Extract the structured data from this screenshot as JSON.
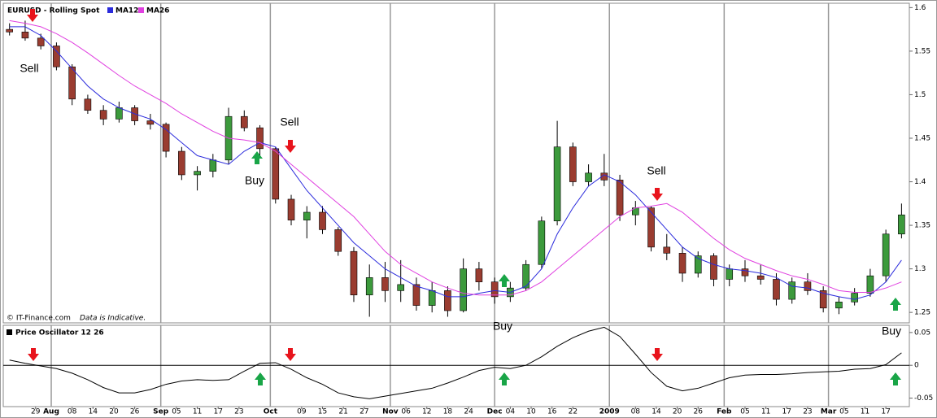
{
  "chart_data": [
    {
      "type": "candlestick",
      "title": "EURUSD - Rolling Spot",
      "x": [
        0,
        3,
        6,
        9,
        12,
        15,
        18,
        21,
        24,
        27,
        30,
        33,
        36,
        39,
        42,
        45,
        48,
        51,
        54,
        57,
        60,
        63,
        66,
        69,
        72,
        75,
        78,
        81,
        84,
        87,
        90,
        93,
        96,
        99,
        102,
        105,
        108,
        111,
        114,
        117,
        120,
        123,
        126,
        129,
        132,
        135,
        138,
        141,
        144,
        147,
        150,
        153,
        156,
        159,
        162,
        165,
        168,
        171
      ],
      "open": [
        1.575,
        1.572,
        1.565,
        1.556,
        1.532,
        1.495,
        1.482,
        1.472,
        1.485,
        1.47,
        1.466,
        1.435,
        1.408,
        1.412,
        1.425,
        1.475,
        1.462,
        1.438,
        1.38,
        1.356,
        1.365,
        1.345,
        1.32,
        1.27,
        1.29,
        1.275,
        1.282,
        1.258,
        1.275,
        1.252,
        1.3,
        1.285,
        1.268,
        1.278,
        1.305,
        1.355,
        1.44,
        1.4,
        1.41,
        1.402,
        1.362,
        1.37,
        1.325,
        1.318,
        1.295,
        1.315,
        1.288,
        1.3,
        1.292,
        1.288,
        1.265,
        1.285,
        1.275,
        1.255,
        1.262,
        1.272,
        1.292,
        1.34
      ],
      "high": [
        1.582,
        1.585,
        1.57,
        1.56,
        1.535,
        1.5,
        1.488,
        1.492,
        1.488,
        1.478,
        1.468,
        1.44,
        1.418,
        1.432,
        1.485,
        1.482,
        1.465,
        1.44,
        1.385,
        1.372,
        1.372,
        1.348,
        1.325,
        1.305,
        1.308,
        1.31,
        1.29,
        1.285,
        1.28,
        1.312,
        1.308,
        1.29,
        1.285,
        1.31,
        1.36,
        1.47,
        1.445,
        1.42,
        1.432,
        1.408,
        1.378,
        1.372,
        1.34,
        1.325,
        1.32,
        1.318,
        1.305,
        1.31,
        1.305,
        1.295,
        1.29,
        1.295,
        1.28,
        1.268,
        1.278,
        1.3,
        1.345,
        1.375
      ],
      "low": [
        1.568,
        1.562,
        1.552,
        1.528,
        1.488,
        1.478,
        1.465,
        1.468,
        1.465,
        1.46,
        1.428,
        1.402,
        1.39,
        1.405,
        1.42,
        1.458,
        1.428,
        1.375,
        1.35,
        1.335,
        1.34,
        1.315,
        1.262,
        1.245,
        1.262,
        1.262,
        1.252,
        1.25,
        1.245,
        1.25,
        1.275,
        1.26,
        1.262,
        1.275,
        1.3,
        1.35,
        1.395,
        1.395,
        1.395,
        1.355,
        1.35,
        1.32,
        1.31,
        1.285,
        1.29,
        1.28,
        1.28,
        1.285,
        1.282,
        1.258,
        1.26,
        1.27,
        1.25,
        1.248,
        1.258,
        1.268,
        1.285,
        1.335
      ],
      "close": [
        1.572,
        1.565,
        1.556,
        1.532,
        1.495,
        1.482,
        1.472,
        1.485,
        1.47,
        1.466,
        1.435,
        1.408,
        1.412,
        1.425,
        1.475,
        1.462,
        1.438,
        1.38,
        1.356,
        1.365,
        1.345,
        1.32,
        1.27,
        1.29,
        1.275,
        1.282,
        1.258,
        1.275,
        1.252,
        1.3,
        1.285,
        1.268,
        1.278,
        1.305,
        1.355,
        1.44,
        1.4,
        1.41,
        1.402,
        1.362,
        1.37,
        1.325,
        1.318,
        1.295,
        1.315,
        1.288,
        1.3,
        1.292,
        1.288,
        1.265,
        1.285,
        1.275,
        1.255,
        1.262,
        1.272,
        1.292,
        1.34,
        1.362
      ],
      "up_color": "#3c9a3c",
      "down_color": "#9a3c30",
      "series": [
        {
          "name": "MA12",
          "color": "#2b2bdc",
          "values": [
            1.578,
            1.578,
            1.568,
            1.55,
            1.53,
            1.51,
            1.495,
            1.485,
            1.478,
            1.472,
            1.46,
            1.445,
            1.43,
            1.425,
            1.42,
            1.435,
            1.445,
            1.44,
            1.415,
            1.39,
            1.37,
            1.35,
            1.33,
            1.315,
            1.3,
            1.29,
            1.28,
            1.275,
            1.268,
            1.268,
            1.272,
            1.275,
            1.273,
            1.28,
            1.3,
            1.34,
            1.37,
            1.395,
            1.408,
            1.4,
            1.385,
            1.365,
            1.345,
            1.325,
            1.312,
            1.305,
            1.3,
            1.298,
            1.295,
            1.29,
            1.28,
            1.278,
            1.272,
            1.268,
            1.265,
            1.27,
            1.285,
            1.31
          ]
        },
        {
          "name": "MA26",
          "color": "#e040e0",
          "values": [
            1.585,
            1.582,
            1.578,
            1.57,
            1.56,
            1.548,
            1.535,
            1.522,
            1.51,
            1.5,
            1.49,
            1.478,
            1.468,
            1.458,
            1.45,
            1.448,
            1.445,
            1.435,
            1.42,
            1.405,
            1.39,
            1.375,
            1.36,
            1.34,
            1.32,
            1.305,
            1.295,
            1.285,
            1.278,
            1.272,
            1.27,
            1.27,
            1.27,
            1.275,
            1.285,
            1.3,
            1.315,
            1.33,
            1.345,
            1.36,
            1.37,
            1.372,
            1.375,
            1.365,
            1.35,
            1.335,
            1.322,
            1.312,
            1.305,
            1.298,
            1.292,
            1.288,
            1.282,
            1.275,
            1.273,
            1.273,
            1.278,
            1.285
          ]
        }
      ],
      "xlim": [
        -1.2,
        172.5
      ],
      "ylim": [
        1.238,
        1.605
      ],
      "yticks": [
        1.25,
        1.3,
        1.35,
        1.4,
        1.45,
        1.5,
        1.55,
        1.6
      ],
      "annotations": [
        "Sell",
        "Sell",
        "Buy",
        "Sell",
        "Buy",
        "Buy"
      ],
      "credit": "© IT-Finance.com",
      "note": "Data is Indicative."
    },
    {
      "type": "line",
      "title": "Price Oscillator 12 26",
      "color": "#000000",
      "values": [
        0.008,
        0.003,
        -0.001,
        -0.005,
        -0.012,
        -0.022,
        -0.034,
        -0.042,
        -0.042,
        -0.037,
        -0.029,
        -0.024,
        -0.022,
        -0.023,
        -0.022,
        -0.009,
        0.003,
        0.004,
        -0.006,
        -0.019,
        -0.029,
        -0.042,
        -0.048,
        -0.051,
        -0.047,
        -0.043,
        -0.039,
        -0.035,
        -0.027,
        -0.018,
        -0.008,
        -0.003,
        -0.005,
        0,
        0.013,
        0.029,
        0.042,
        0.052,
        0.058,
        0.044,
        0.017,
        -0.011,
        -0.032,
        -0.039,
        -0.035,
        -0.027,
        -0.019,
        -0.015,
        -0.014,
        -0.014,
        -0.013,
        -0.011,
        -0.01,
        -0.009,
        -0.006,
        -0.005,
        0.001,
        0.019
      ],
      "xlim": [
        -1.2,
        172.5
      ],
      "ylim": [
        -0.063,
        0.061
      ],
      "yticks": [
        -0.05,
        0,
        0.05
      ],
      "xticks": [
        {
          "value": 5,
          "label": "29"
        },
        {
          "value": 12,
          "label": "08"
        },
        {
          "value": 16,
          "label": "14"
        },
        {
          "value": 20,
          "label": "20"
        },
        {
          "value": 24,
          "label": "26"
        },
        {
          "value": 32,
          "label": "05"
        },
        {
          "value": 36,
          "label": "11"
        },
        {
          "value": 40,
          "label": "17"
        },
        {
          "value": 44,
          "label": "23"
        },
        {
          "value": 56,
          "label": "09"
        },
        {
          "value": 60,
          "label": "15"
        },
        {
          "value": 64,
          "label": "21"
        },
        {
          "value": 68,
          "label": "27"
        },
        {
          "value": 76,
          "label": "06"
        },
        {
          "value": 80,
          "label": "12"
        },
        {
          "value": 84,
          "label": "18"
        },
        {
          "value": 88,
          "label": "24"
        },
        {
          "value": 96,
          "label": "04"
        },
        {
          "value": 100,
          "label": "10"
        },
        {
          "value": 104,
          "label": "16"
        },
        {
          "value": 108,
          "label": "22"
        },
        {
          "value": 120,
          "label": "08"
        },
        {
          "value": 124,
          "label": "14"
        },
        {
          "value": 128,
          "label": "20"
        },
        {
          "value": 132,
          "label": "26"
        },
        {
          "value": 141,
          "label": "05"
        },
        {
          "value": 145,
          "label": "11"
        },
        {
          "value": 149,
          "label": "17"
        },
        {
          "value": 153,
          "label": "23"
        },
        {
          "value": 160,
          "label": "05"
        },
        {
          "value": 164,
          "label": "11"
        },
        {
          "value": 168,
          "label": "17"
        }
      ],
      "xticks_major": [
        {
          "value": 8,
          "label": "Aug"
        },
        {
          "value": 29,
          "label": "Sep"
        },
        {
          "value": 50,
          "label": "Oct"
        },
        {
          "value": 73,
          "label": "Nov"
        },
        {
          "value": 93,
          "label": "Dec"
        },
        {
          "value": 115,
          "label": "2009"
        },
        {
          "value": 137,
          "label": "Feb"
        },
        {
          "value": 157,
          "label": "Mar"
        }
      ]
    }
  ]
}
